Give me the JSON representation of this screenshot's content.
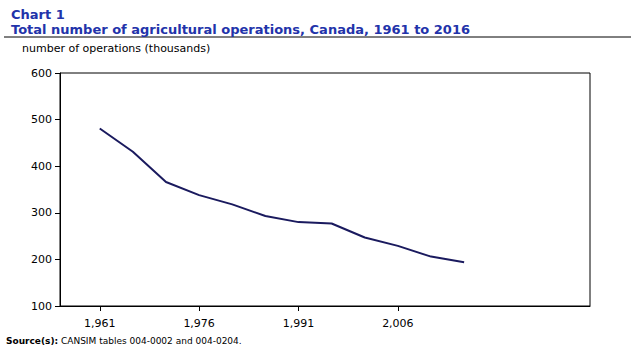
{
  "chart_data": {
    "type": "line",
    "title": "Chart 1",
    "subtitle": "Total number of agricultural operations, Canada, 1961 to 2016",
    "y_label": "number of operations (thousands)",
    "source": "Source(s): CANSIM tables 004-0002 and 004-0204.",
    "x": [
      1961,
      1966,
      1971,
      1976,
      1981,
      1986,
      1991,
      1996,
      2001,
      2006,
      2011,
      2016
    ],
    "values": [
      481,
      431,
      366,
      338,
      318,
      293,
      280,
      277,
      247,
      229,
      206,
      194
    ],
    "color": "#1a1a5e",
    "xlim": [
      1955,
      2035
    ],
    "xticks": [
      1961,
      1976,
      1991,
      2006
    ],
    "ylim": [
      100,
      600
    ],
    "yticks": [
      100,
      200,
      300,
      400,
      500,
      600
    ],
    "grid": false
  }
}
